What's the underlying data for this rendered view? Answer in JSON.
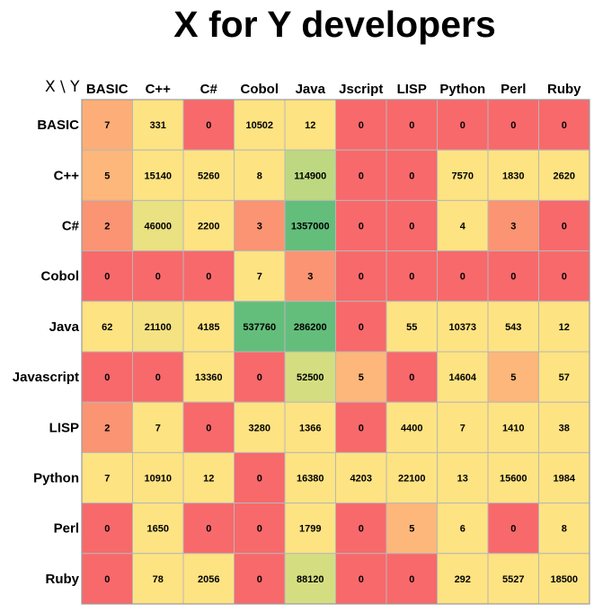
{
  "title": "X for Y developers",
  "corner_label": "X \\ Y",
  "chart_data": {
    "type": "heatmap",
    "title": "X for Y developers",
    "row_axis_label": "X",
    "col_axis_label": "Y",
    "columns": [
      "BASIC",
      "C++",
      "C#",
      "Cobol",
      "Java",
      "Jscript",
      "LISP",
      "Python",
      "Perl",
      "Ruby"
    ],
    "rows": [
      "BASIC",
      "C++",
      "C#",
      "Cobol",
      "Java",
      "Javascript",
      "LISP",
      "Python",
      "Perl",
      "Ruby"
    ],
    "values": [
      [
        7,
        331,
        0,
        10502,
        12,
        0,
        0,
        0,
        0,
        0
      ],
      [
        5,
        15140,
        5260,
        8,
        114900,
        0,
        0,
        7570,
        1830,
        2620
      ],
      [
        2,
        46000,
        2200,
        3,
        1357000,
        0,
        0,
        4,
        3,
        0
      ],
      [
        0,
        0,
        0,
        7,
        3,
        0,
        0,
        0,
        0,
        0
      ],
      [
        62,
        21100,
        4185,
        537760,
        286200,
        0,
        55,
        10373,
        543,
        12
      ],
      [
        0,
        0,
        13360,
        0,
        52500,
        5,
        0,
        14604,
        5,
        57
      ],
      [
        2,
        7,
        0,
        3280,
        1366,
        0,
        4400,
        7,
        1410,
        38
      ],
      [
        7,
        10910,
        12,
        0,
        16380,
        4203,
        22100,
        13,
        15600,
        1984
      ],
      [
        0,
        1650,
        0,
        0,
        1799,
        0,
        5,
        6,
        0,
        8
      ],
      [
        0,
        78,
        2056,
        0,
        88120,
        0,
        0,
        292,
        5527,
        18500
      ]
    ],
    "colors": [
      [
        "#FDAE78",
        "#FEE382",
        "#F8696B",
        "#FEE382",
        "#FEE382",
        "#F8696B",
        "#F8696B",
        "#F8696B",
        "#F8696B",
        "#F8696B"
      ],
      [
        "#FDB77A",
        "#FEE382",
        "#FEE382",
        "#FEE382",
        "#BDD881",
        "#F8696B",
        "#F8696B",
        "#FEE382",
        "#FEE382",
        "#FEE382"
      ],
      [
        "#FA9473",
        "#E9E182",
        "#FEE382",
        "#FA9473",
        "#63BE7B",
        "#F8696B",
        "#F8696B",
        "#FEE382",
        "#FA9473",
        "#F8696B"
      ],
      [
        "#F8696B",
        "#F8696B",
        "#F8696B",
        "#FEE382",
        "#FA9473",
        "#F8696B",
        "#F8696B",
        "#F8696B",
        "#F8696B",
        "#F8696B"
      ],
      [
        "#FEE382",
        "#F5E282",
        "#FEE382",
        "#63BE7B",
        "#63BE7B",
        "#F8696B",
        "#FEE382",
        "#FEE382",
        "#FEE382",
        "#FEE382"
      ],
      [
        "#F8696B",
        "#F8696B",
        "#FEE382",
        "#F8696B",
        "#D4DE81",
        "#FDB77A",
        "#F8696B",
        "#FEE382",
        "#FDB77A",
        "#FEE382"
      ],
      [
        "#FA9473",
        "#FEE382",
        "#F8696B",
        "#FEE382",
        "#FEE382",
        "#F8696B",
        "#FEE382",
        "#FEE382",
        "#FEE382",
        "#FEE382"
      ],
      [
        "#FEE382",
        "#FEE382",
        "#FEE382",
        "#F8696B",
        "#FEE382",
        "#FEE382",
        "#FEE382",
        "#FEE382",
        "#FEE382",
        "#FEE382"
      ],
      [
        "#F8696B",
        "#FEE382",
        "#F8696B",
        "#F8696B",
        "#FEE382",
        "#F8696B",
        "#FDB77A",
        "#FEE382",
        "#F8696B",
        "#FEE382"
      ],
      [
        "#F8696B",
        "#FEE382",
        "#FEE382",
        "#F8696B",
        "#D4DE81",
        "#F8696B",
        "#F8696B",
        "#FEE382",
        "#FEE382",
        "#FEE382"
      ]
    ],
    "color_scale": {
      "low": "#F8696B",
      "mid": "#FEE382",
      "high": "#63BE7B"
    },
    "grid": true,
    "legend": "none"
  }
}
